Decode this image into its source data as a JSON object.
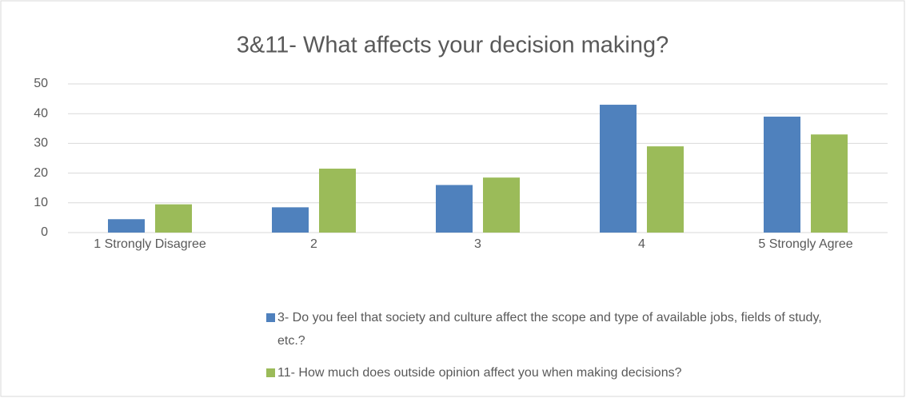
{
  "chart_data": {
    "type": "bar",
    "title": "3&11- What affects your decision making?",
    "categories": [
      "1 Strongly Disagree",
      "2",
      "3",
      "4",
      "5 Strongly Agree"
    ],
    "series": [
      {
        "name": "3- Do you feel that society and culture affect the scope and type of available jobs, fields of study, etc.?",
        "color": "#4f81bd",
        "values": [
          4.5,
          8.5,
          16,
          43,
          39
        ]
      },
      {
        "name": "11- How much does outside opinion affect you when making decisions?",
        "color": "#9bbb59",
        "values": [
          9.5,
          21.5,
          18.5,
          29,
          33
        ]
      }
    ],
    "ylim": [
      0,
      50
    ],
    "yticks": [
      0,
      10,
      20,
      30,
      40,
      50
    ],
    "grid": true,
    "legend": "bottom"
  }
}
